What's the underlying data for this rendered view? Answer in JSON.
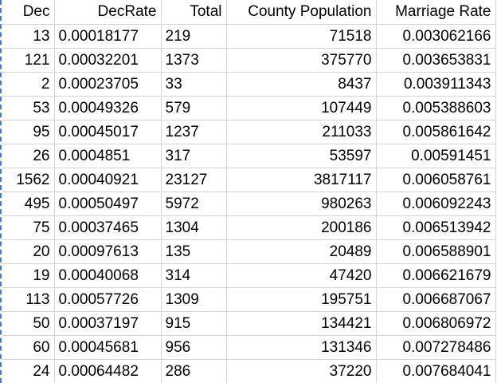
{
  "sheet": {
    "headers": [
      "Dec",
      "DecRate",
      "Total",
      "County Population",
      "Marriage Rate"
    ],
    "rows": [
      [
        "13",
        "0.00018177",
        "219",
        "71518",
        "0.003062166"
      ],
      [
        "121",
        "0.00032201",
        "1373",
        "375770",
        "0.003653831"
      ],
      [
        "2",
        "0.00023705",
        "33",
        "8437",
        "0.003911343"
      ],
      [
        "53",
        "0.00049326",
        "579",
        "107449",
        "0.005388603"
      ],
      [
        "95",
        "0.00045017",
        "1237",
        "211033",
        "0.005861642"
      ],
      [
        "26",
        "0.0004851",
        "317",
        "53597",
        "0.00591451"
      ],
      [
        "1562",
        "0.00040921",
        "23127",
        "3817117",
        "0.006058761"
      ],
      [
        "495",
        "0.00050497",
        "5972",
        "980263",
        "0.006092243"
      ],
      [
        "75",
        "0.00037465",
        "1304",
        "200186",
        "0.006513942"
      ],
      [
        "20",
        "0.00097613",
        "135",
        "20489",
        "0.006588901"
      ],
      [
        "19",
        "0.00040068",
        "314",
        "47420",
        "0.006621679"
      ],
      [
        "113",
        "0.00057726",
        "1309",
        "195751",
        "0.006687067"
      ],
      [
        "50",
        "0.00037197",
        "915",
        "134421",
        "0.006806972"
      ],
      [
        "60",
        "0.00045681",
        "956",
        "131346",
        "0.007278486"
      ],
      [
        "24",
        "0.00064482",
        "286",
        "37220",
        "0.007684041"
      ]
    ]
  }
}
